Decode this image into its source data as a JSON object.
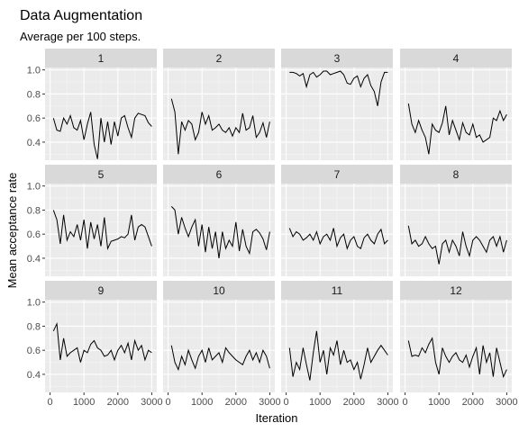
{
  "chart_data": {
    "type": "line",
    "title": "Data Augmentation",
    "subtitle": "Average per 100 steps.",
    "xlabel": "Iteration",
    "ylabel": "Mean acceptance rate",
    "xlim": [
      0,
      3000
    ],
    "ylim": [
      0.25,
      1.02
    ],
    "x_ticks": [
      0,
      1000,
      2000,
      3000
    ],
    "x_tick_labels": [
      "0",
      "1000",
      "2000",
      "3000"
    ],
    "y_ticks": [
      0.4,
      0.6,
      0.8,
      1.0
    ],
    "y_tick_labels": [
      "0.4",
      "0.6",
      "0.8",
      "1.0"
    ],
    "grid": true,
    "layout": "facet grid 3 rows x 4 columns",
    "x": [
      100,
      200,
      300,
      400,
      500,
      600,
      700,
      800,
      900,
      1000,
      1100,
      1200,
      1300,
      1400,
      1500,
      1600,
      1700,
      1800,
      1900,
      2000,
      2100,
      2200,
      2300,
      2400,
      2500,
      2600,
      2700,
      2800,
      2900,
      3000
    ],
    "panels": [
      {
        "label": "1",
        "values": [
          0.6,
          0.5,
          0.49,
          0.6,
          0.55,
          0.62,
          0.52,
          0.5,
          0.58,
          0.42,
          0.55,
          0.65,
          0.38,
          0.26,
          0.6,
          0.4,
          0.57,
          0.38,
          0.57,
          0.45,
          0.6,
          0.62,
          0.52,
          0.44,
          0.6,
          0.64,
          0.63,
          0.62,
          0.56,
          0.53
        ]
      },
      {
        "label": "2",
        "values": [
          0.76,
          0.65,
          0.3,
          0.57,
          0.5,
          0.58,
          0.55,
          0.42,
          0.48,
          0.65,
          0.55,
          0.62,
          0.5,
          0.52,
          0.55,
          0.5,
          0.48,
          0.52,
          0.45,
          0.52,
          0.48,
          0.64,
          0.5,
          0.52,
          0.62,
          0.44,
          0.48,
          0.56,
          0.44,
          0.57
        ]
      },
      {
        "label": "3",
        "values": [
          0.98,
          0.98,
          0.97,
          0.95,
          0.97,
          0.86,
          0.96,
          0.98,
          0.94,
          0.96,
          0.99,
          0.99,
          0.96,
          0.97,
          0.98,
          0.99,
          0.96,
          0.89,
          0.88,
          0.93,
          0.95,
          0.86,
          0.93,
          0.96,
          0.87,
          0.82,
          0.7,
          0.9,
          0.98,
          0.98
        ]
      },
      {
        "label": "4",
        "values": [
          0.72,
          0.55,
          0.48,
          0.58,
          0.5,
          0.44,
          0.3,
          0.55,
          0.5,
          0.48,
          0.56,
          0.7,
          0.46,
          0.58,
          0.5,
          0.42,
          0.56,
          0.48,
          0.46,
          0.55,
          0.44,
          0.46,
          0.4,
          0.42,
          0.44,
          0.6,
          0.58,
          0.66,
          0.58,
          0.63
        ]
      },
      {
        "label": "5",
        "values": [
          0.8,
          0.72,
          0.52,
          0.76,
          0.55,
          0.62,
          0.58,
          0.68,
          0.55,
          0.72,
          0.48,
          0.7,
          0.56,
          0.68,
          0.5,
          0.74,
          0.48,
          0.54,
          0.55,
          0.56,
          0.58,
          0.57,
          0.6,
          0.76,
          0.55,
          0.66,
          0.68,
          0.66,
          0.58,
          0.5
        ]
      },
      {
        "label": "6",
        "values": [
          0.83,
          0.8,
          0.6,
          0.74,
          0.65,
          0.58,
          0.66,
          0.72,
          0.5,
          0.68,
          0.45,
          0.66,
          0.48,
          0.62,
          0.4,
          0.62,
          0.48,
          0.55,
          0.5,
          0.7,
          0.46,
          0.64,
          0.5,
          0.44,
          0.62,
          0.64,
          0.61,
          0.56,
          0.47,
          0.62
        ]
      },
      {
        "label": "7",
        "values": [
          0.65,
          0.58,
          0.62,
          0.6,
          0.55,
          0.57,
          0.6,
          0.55,
          0.62,
          0.52,
          0.58,
          0.6,
          0.55,
          0.65,
          0.5,
          0.57,
          0.6,
          0.48,
          0.55,
          0.58,
          0.5,
          0.48,
          0.57,
          0.6,
          0.55,
          0.52,
          0.6,
          0.64,
          0.52,
          0.55
        ]
      },
      {
        "label": "8",
        "values": [
          0.67,
          0.52,
          0.55,
          0.5,
          0.52,
          0.58,
          0.52,
          0.48,
          0.5,
          0.35,
          0.52,
          0.55,
          0.45,
          0.55,
          0.5,
          0.42,
          0.62,
          0.5,
          0.42,
          0.55,
          0.58,
          0.55,
          0.5,
          0.45,
          0.55,
          0.58,
          0.5,
          0.58,
          0.45,
          0.55
        ]
      },
      {
        "label": "9",
        "values": [
          0.76,
          0.82,
          0.52,
          0.7,
          0.55,
          0.58,
          0.6,
          0.62,
          0.5,
          0.6,
          0.58,
          0.65,
          0.68,
          0.62,
          0.6,
          0.55,
          0.56,
          0.6,
          0.52,
          0.6,
          0.64,
          0.58,
          0.66,
          0.52,
          0.68,
          0.6,
          0.64,
          0.52,
          0.6,
          0.58
        ]
      },
      {
        "label": "10",
        "values": [
          0.64,
          0.5,
          0.44,
          0.55,
          0.48,
          0.6,
          0.52,
          0.45,
          0.55,
          0.6,
          0.5,
          0.62,
          0.52,
          0.55,
          0.58,
          0.5,
          0.62,
          0.58,
          0.55,
          0.52,
          0.5,
          0.48,
          0.55,
          0.6,
          0.52,
          0.58,
          0.5,
          0.6,
          0.55,
          0.45
        ]
      },
      {
        "label": "11",
        "values": [
          0.62,
          0.38,
          0.5,
          0.44,
          0.62,
          0.48,
          0.35,
          0.58,
          0.76,
          0.5,
          0.6,
          0.4,
          0.62,
          0.56,
          0.68,
          0.48,
          0.6,
          0.5,
          0.52,
          0.44,
          0.5,
          0.36,
          0.48,
          0.62,
          0.5,
          0.55,
          0.6,
          0.64,
          0.6,
          0.56
        ]
      },
      {
        "label": "12",
        "values": [
          0.68,
          0.55,
          0.56,
          0.55,
          0.62,
          0.58,
          0.65,
          0.7,
          0.5,
          0.4,
          0.62,
          0.55,
          0.5,
          0.55,
          0.58,
          0.52,
          0.5,
          0.56,
          0.46,
          0.55,
          0.62,
          0.4,
          0.64,
          0.5,
          0.58,
          0.38,
          0.62,
          0.5,
          0.38,
          0.44
        ]
      }
    ]
  }
}
